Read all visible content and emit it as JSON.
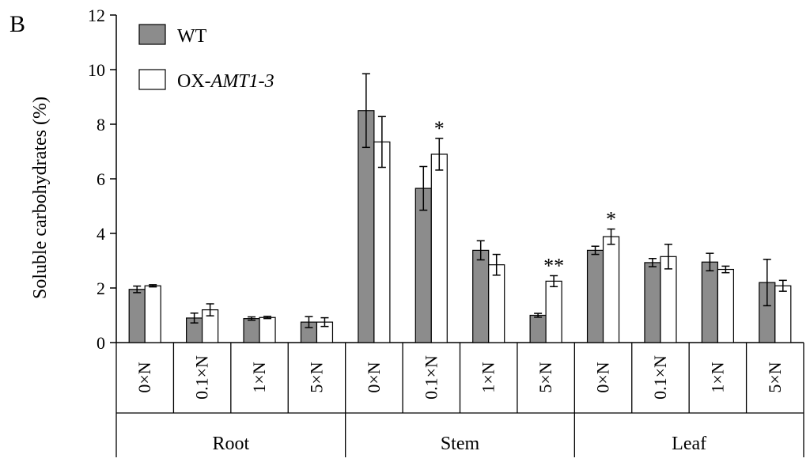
{
  "panel_label": "B",
  "chart_data": {
    "type": "bar",
    "ylabel": "Soluble carbohydrates (%)",
    "ylim": [
      0,
      12
    ],
    "yticks": [
      0,
      2,
      4,
      6,
      8,
      10,
      12
    ],
    "grid": false,
    "legend_position": "top-left",
    "groups": [
      {
        "label": "Root",
        "categories": [
          "0×N",
          "0.1×N",
          "1×N",
          "5×N"
        ]
      },
      {
        "label": "Stem",
        "categories": [
          "0×N",
          "0.1×N",
          "1×N",
          "5×N"
        ]
      },
      {
        "label": "Leaf",
        "categories": [
          "0×N",
          "0.1×N",
          "1×N",
          "5×N"
        ]
      }
    ],
    "series": [
      {
        "name": "WT",
        "color": "#8c8c8c",
        "values": [
          1.95,
          0.9,
          0.88,
          0.75,
          8.5,
          5.65,
          3.38,
          1.0,
          3.38,
          2.93,
          2.95,
          2.2
        ],
        "errors": [
          0.12,
          0.18,
          0.06,
          0.2,
          1.35,
          0.8,
          0.35,
          0.07,
          0.15,
          0.15,
          0.32,
          0.85
        ]
      },
      {
        "name_prefix": "OX-",
        "name_italic": "AMT1-3",
        "color": "#ffffff",
        "values": [
          2.08,
          1.2,
          0.92,
          0.75,
          7.35,
          6.9,
          2.85,
          2.25,
          3.88,
          3.15,
          2.68,
          2.08
        ],
        "errors": [
          0.04,
          0.22,
          0.04,
          0.16,
          0.93,
          0.58,
          0.38,
          0.2,
          0.28,
          0.45,
          0.12,
          0.2
        ]
      }
    ],
    "annotations": [
      {
        "bar_index": 5,
        "series": 1,
        "text": "*"
      },
      {
        "bar_index": 7,
        "series": 1,
        "text": "**"
      },
      {
        "bar_index": 8,
        "series": 1,
        "text": "*"
      }
    ]
  }
}
